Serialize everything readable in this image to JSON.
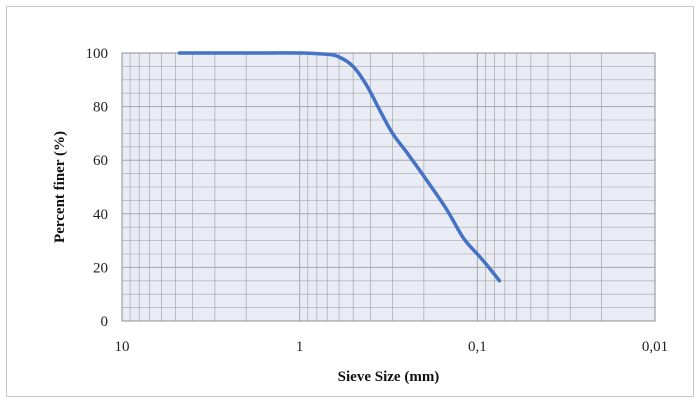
{
  "chart_data": {
    "type": "line",
    "title": "",
    "xlabel": "Sieve Size (mm)",
    "ylabel": "Percent finer (%)",
    "x_scale": "log",
    "x_reversed": true,
    "xlim": [
      10,
      0.01
    ],
    "ylim": [
      0,
      100
    ],
    "x_ticks": [
      10,
      1,
      0.1,
      0.01
    ],
    "x_tick_labels": [
      "10",
      "1",
      "0,1",
      "0,01"
    ],
    "y_ticks": [
      0,
      20,
      40,
      60,
      80,
      100
    ],
    "y_tick_labels": [
      "0",
      "20",
      "40",
      "60",
      "80",
      "100"
    ],
    "grid": true,
    "legend": "none",
    "colors": {
      "line": "#4472c4",
      "plot_bg": "#e9ebf5",
      "grid": "#a8a8a8"
    },
    "series": [
      {
        "x": [
          4.75,
          2.0,
          1.0,
          0.7,
          0.6,
          0.5,
          0.42,
          0.35,
          0.3,
          0.25,
          0.2,
          0.15,
          0.12,
          0.1,
          0.09,
          0.075
        ],
        "y": [
          100,
          100,
          100,
          99.5,
          98.5,
          95,
          88,
          78,
          70,
          63,
          54,
          42,
          31,
          25,
          21.5,
          15
        ]
      }
    ]
  }
}
